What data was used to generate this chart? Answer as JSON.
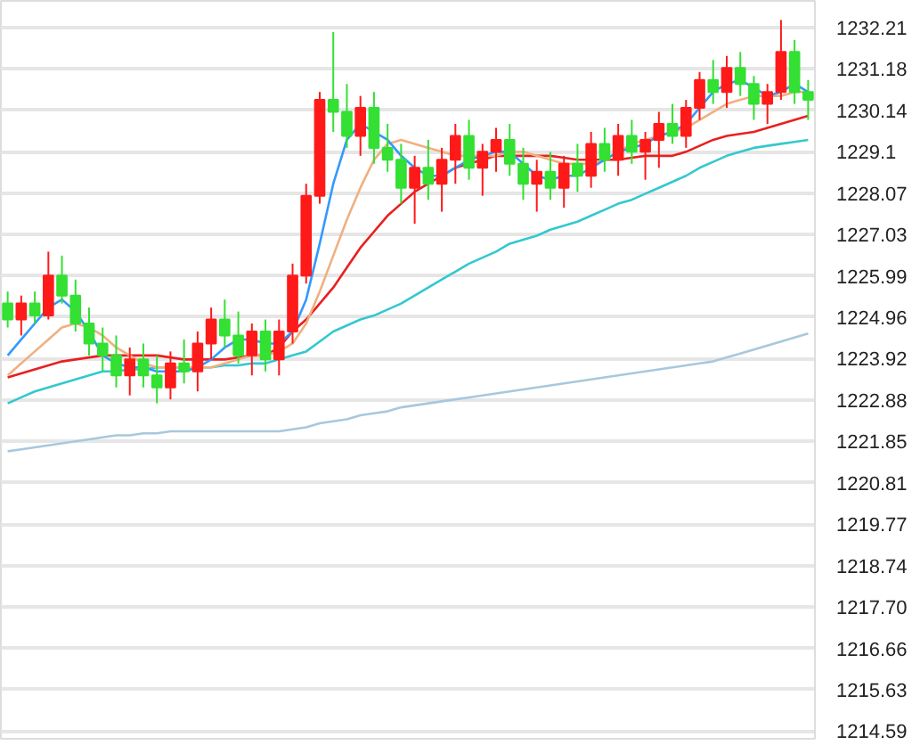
{
  "chart_data": {
    "type": "candlestick",
    "categories": [
      null,
      null,
      null,
      null,
      null,
      null,
      null,
      null,
      null,
      null,
      null,
      null,
      null,
      null,
      null,
      null,
      null,
      null,
      null,
      null,
      null,
      null,
      null,
      null,
      null,
      null,
      null,
      null,
      null,
      null,
      null,
      null,
      null,
      null,
      null,
      null,
      null,
      null,
      null,
      null,
      null,
      null,
      null,
      null,
      null,
      null,
      null,
      null,
      null,
      null,
      null,
      null,
      null,
      null,
      null,
      null,
      null,
      null,
      null,
      null
    ],
    "ohlc": [
      [
        1225.3,
        1225.6,
        1224.7,
        1224.9
      ],
      [
        1224.9,
        1225.5,
        1224.5,
        1225.3
      ],
      [
        1225.3,
        1225.6,
        1224.8,
        1225.0
      ],
      [
        1225.0,
        1226.6,
        1224.9,
        1226.0
      ],
      [
        1226.0,
        1226.5,
        1225.3,
        1225.5
      ],
      [
        1225.5,
        1225.9,
        1224.6,
        1224.8
      ],
      [
        1224.8,
        1225.2,
        1224.0,
        1224.3
      ],
      [
        1224.3,
        1224.7,
        1223.6,
        1224.0
      ],
      [
        1224.0,
        1224.5,
        1223.2,
        1223.5
      ],
      [
        1223.5,
        1224.2,
        1223.0,
        1223.9
      ],
      [
        1223.9,
        1224.3,
        1223.2,
        1223.5
      ],
      [
        1223.5,
        1224.0,
        1222.8,
        1223.2
      ],
      [
        1223.2,
        1224.1,
        1222.9,
        1223.8
      ],
      [
        1223.8,
        1224.4,
        1223.3,
        1223.6
      ],
      [
        1223.6,
        1224.6,
        1223.1,
        1224.3
      ],
      [
        1224.3,
        1225.2,
        1223.9,
        1224.9
      ],
      [
        1224.9,
        1225.4,
        1224.2,
        1224.5
      ],
      [
        1224.5,
        1225.1,
        1223.8,
        1224.0
      ],
      [
        1224.0,
        1224.8,
        1223.5,
        1224.6
      ],
      [
        1224.6,
        1224.9,
        1223.6,
        1223.9
      ],
      [
        1223.9,
        1224.9,
        1223.5,
        1224.6
      ],
      [
        1224.6,
        1226.3,
        1224.3,
        1226.0
      ],
      [
        1226.0,
        1228.3,
        1225.8,
        1228.0
      ],
      [
        1228.0,
        1230.6,
        1227.8,
        1230.4
      ],
      [
        1230.4,
        1232.1,
        1229.6,
        1230.1
      ],
      [
        1230.1,
        1230.8,
        1229.2,
        1229.5
      ],
      [
        1229.5,
        1230.5,
        1229.0,
        1230.2
      ],
      [
        1230.2,
        1230.6,
        1228.8,
        1229.2
      ],
      [
        1229.2,
        1229.8,
        1228.6,
        1228.9
      ],
      [
        1228.9,
        1229.3,
        1227.8,
        1228.2
      ],
      [
        1228.2,
        1229.0,
        1227.3,
        1228.7
      ],
      [
        1228.7,
        1229.4,
        1227.9,
        1228.3
      ],
      [
        1228.3,
        1229.2,
        1227.6,
        1228.9
      ],
      [
        1228.9,
        1229.8,
        1228.3,
        1229.5
      ],
      [
        1229.5,
        1229.9,
        1228.4,
        1228.7
      ],
      [
        1228.7,
        1229.3,
        1228.0,
        1229.1
      ],
      [
        1229.1,
        1229.7,
        1228.6,
        1229.4
      ],
      [
        1229.4,
        1229.8,
        1228.5,
        1228.8
      ],
      [
        1228.8,
        1229.2,
        1227.9,
        1228.3
      ],
      [
        1228.3,
        1228.9,
        1227.6,
        1228.6
      ],
      [
        1228.6,
        1229.1,
        1227.9,
        1228.2
      ],
      [
        1228.2,
        1229.0,
        1227.7,
        1228.8
      ],
      [
        1228.8,
        1229.3,
        1228.1,
        1228.5
      ],
      [
        1228.5,
        1229.6,
        1228.2,
        1229.3
      ],
      [
        1229.3,
        1229.7,
        1228.6,
        1228.9
      ],
      [
        1228.9,
        1229.8,
        1228.5,
        1229.5
      ],
      [
        1229.5,
        1229.9,
        1228.8,
        1229.1
      ],
      [
        1229.1,
        1229.6,
        1228.4,
        1229.4
      ],
      [
        1229.4,
        1230.1,
        1228.7,
        1229.8
      ],
      [
        1229.8,
        1230.3,
        1229.3,
        1229.5
      ],
      [
        1229.5,
        1230.4,
        1229.2,
        1230.2
      ],
      [
        1230.2,
        1231.1,
        1229.9,
        1230.9
      ],
      [
        1230.9,
        1231.4,
        1230.3,
        1230.6
      ],
      [
        1230.6,
        1231.5,
        1230.2,
        1231.2
      ],
      [
        1231.2,
        1231.6,
        1230.5,
        1230.8
      ],
      [
        1230.8,
        1231.0,
        1229.9,
        1230.3
      ],
      [
        1230.3,
        1230.8,
        1229.8,
        1230.6
      ],
      [
        1230.6,
        1232.4,
        1230.4,
        1231.6
      ],
      [
        1231.6,
        1231.9,
        1230.3,
        1230.6
      ],
      [
        1230.6,
        1230.9,
        1229.9,
        1230.4
      ]
    ],
    "colors": [
      "#33e033",
      "#ff1a1a",
      "#33e033",
      "#ff1a1a",
      "#33e033",
      "#33e033",
      "#33e033",
      "#33e033",
      "#33e033",
      "#ff1a1a",
      "#33e033",
      "#33e033",
      "#ff1a1a",
      "#33e033",
      "#ff1a1a",
      "#ff1a1a",
      "#33e033",
      "#33e033",
      "#ff1a1a",
      "#33e033",
      "#ff1a1a",
      "#ff1a1a",
      "#ff1a1a",
      "#ff1a1a",
      "#33e033",
      "#33e033",
      "#ff1a1a",
      "#33e033",
      "#33e033",
      "#33e033",
      "#ff1a1a",
      "#33e033",
      "#ff1a1a",
      "#ff1a1a",
      "#33e033",
      "#ff1a1a",
      "#ff1a1a",
      "#33e033",
      "#33e033",
      "#ff1a1a",
      "#33e033",
      "#ff1a1a",
      "#33e033",
      "#ff1a1a",
      "#33e033",
      "#ff1a1a",
      "#33e033",
      "#ff1a1a",
      "#ff1a1a",
      "#33e033",
      "#ff1a1a",
      "#ff1a1a",
      "#33e033",
      "#ff1a1a",
      "#33e033",
      "#33e033",
      "#ff1a1a",
      "#ff1a1a",
      "#33e033",
      "#33e033"
    ],
    "series": [
      {
        "type": "line",
        "color": "#a8c8dc",
        "values": [
          1221.6,
          1221.65,
          1221.7,
          1221.75,
          1221.8,
          1221.85,
          1221.9,
          1221.95,
          1222.0,
          1222.0,
          1222.05,
          1222.05,
          1222.1,
          1222.1,
          1222.1,
          1222.1,
          1222.1,
          1222.1,
          1222.1,
          1222.1,
          1222.1,
          1222.15,
          1222.2,
          1222.3,
          1222.35,
          1222.4,
          1222.5,
          1222.55,
          1222.6,
          1222.7,
          1222.75,
          1222.8,
          1222.85,
          1222.9,
          1222.95,
          1223.0,
          1223.05,
          1223.1,
          1223.15,
          1223.2,
          1223.25,
          1223.3,
          1223.35,
          1223.4,
          1223.45,
          1223.5,
          1223.55,
          1223.6,
          1223.65,
          1223.7,
          1223.75,
          1223.8,
          1223.85,
          1223.95,
          1224.05,
          1224.15,
          1224.25,
          1224.35,
          1224.45,
          1224.55
        ]
      },
      {
        "type": "line",
        "color": "#33c8d0",
        "values": [
          1222.8,
          1222.95,
          1223.1,
          1223.2,
          1223.3,
          1223.4,
          1223.5,
          1223.6,
          1223.6,
          1223.65,
          1223.65,
          1223.7,
          1223.7,
          1223.7,
          1223.7,
          1223.7,
          1223.75,
          1223.75,
          1223.8,
          1223.8,
          1223.9,
          1224.0,
          1224.1,
          1224.35,
          1224.6,
          1224.75,
          1224.9,
          1225.0,
          1225.15,
          1225.3,
          1225.5,
          1225.7,
          1225.9,
          1226.1,
          1226.3,
          1226.45,
          1226.6,
          1226.8,
          1226.9,
          1227.0,
          1227.15,
          1227.25,
          1227.35,
          1227.5,
          1227.65,
          1227.8,
          1227.9,
          1228.05,
          1228.2,
          1228.35,
          1228.5,
          1228.7,
          1228.85,
          1229.0,
          1229.1,
          1229.2,
          1229.25,
          1229.3,
          1229.35,
          1229.4
        ]
      },
      {
        "type": "line",
        "color": "#e82020",
        "values": [
          1223.45,
          1223.55,
          1223.65,
          1223.75,
          1223.85,
          1223.9,
          1223.95,
          1224.0,
          1224.0,
          1224.0,
          1224.0,
          1224.0,
          1223.95,
          1223.9,
          1223.9,
          1223.9,
          1223.9,
          1223.95,
          1224.0,
          1224.0,
          1224.2,
          1224.6,
          1224.9,
          1225.3,
          1225.7,
          1226.2,
          1226.7,
          1227.1,
          1227.5,
          1227.8,
          1228.1,
          1228.3,
          1228.5,
          1228.7,
          1228.8,
          1228.9,
          1229.0,
          1229.0,
          1229.0,
          1229.0,
          1229.0,
          1228.95,
          1228.9,
          1228.9,
          1228.9,
          1228.9,
          1228.95,
          1229.0,
          1229.0,
          1229.0,
          1229.1,
          1229.25,
          1229.4,
          1229.5,
          1229.55,
          1229.6,
          1229.7,
          1229.8,
          1229.9,
          1230.0
        ]
      },
      {
        "type": "line",
        "color": "#f0b080",
        "values": [
          1223.5,
          1223.8,
          1224.1,
          1224.4,
          1224.7,
          1224.8,
          1224.7,
          1224.5,
          1224.2,
          1224.0,
          1223.8,
          1223.7,
          1223.7,
          1223.7,
          1223.7,
          1223.7,
          1223.8,
          1223.9,
          1224.0,
          1224.0,
          1224.1,
          1224.3,
          1224.8,
          1225.6,
          1226.5,
          1227.4,
          1228.2,
          1228.9,
          1229.3,
          1229.4,
          1229.3,
          1229.2,
          1229.1,
          1229.0,
          1229.0,
          1229.0,
          1229.0,
          1229.1,
          1229.1,
          1229.0,
          1228.9,
          1228.8,
          1228.8,
          1228.8,
          1228.9,
          1229.1,
          1229.3,
          1229.4,
          1229.5,
          1229.6,
          1229.7,
          1229.9,
          1230.1,
          1230.3,
          1230.4,
          1230.5,
          1230.5,
          1230.5,
          1230.6,
          1230.6
        ]
      },
      {
        "type": "line",
        "color": "#3399ff",
        "values": [
          1224.0,
          1224.4,
          1224.8,
          1225.2,
          1225.4,
          1225.1,
          1224.6,
          1224.0,
          1223.8,
          1223.7,
          1223.7,
          1223.6,
          1223.6,
          1223.6,
          1223.7,
          1223.9,
          1224.2,
          1224.4,
          1224.4,
          1224.3,
          1224.3,
          1224.6,
          1225.4,
          1226.8,
          1228.3,
          1229.4,
          1229.8,
          1229.6,
          1229.4,
          1229.0,
          1228.7,
          1228.5,
          1228.5,
          1228.7,
          1228.9,
          1229.0,
          1229.1,
          1229.1,
          1228.8,
          1228.5,
          1228.4,
          1228.5,
          1228.5,
          1228.7,
          1228.9,
          1229.1,
          1229.2,
          1229.3,
          1229.5,
          1229.6,
          1229.8,
          1230.2,
          1230.6,
          1230.8,
          1230.9,
          1230.7,
          1230.5,
          1230.6,
          1230.8,
          1230.6
        ]
      }
    ],
    "ylim": [
      1214.4,
      1232.88
    ],
    "yticks": [
      1232.21,
      1231.18,
      1230.14,
      1229.1,
      {
        "value": 1228.07,
        "label": "1228.07"
      },
      1227.03,
      1225.99,
      1224.96,
      1223.92,
      1222.88,
      1221.85,
      1220.81,
      1219.77,
      1218.74,
      {
        "value": 1217.7,
        "label": "1217.70"
      },
      1216.66,
      1215.63,
      1214.59
    ],
    "grid": "y",
    "tick_labels": "y"
  }
}
